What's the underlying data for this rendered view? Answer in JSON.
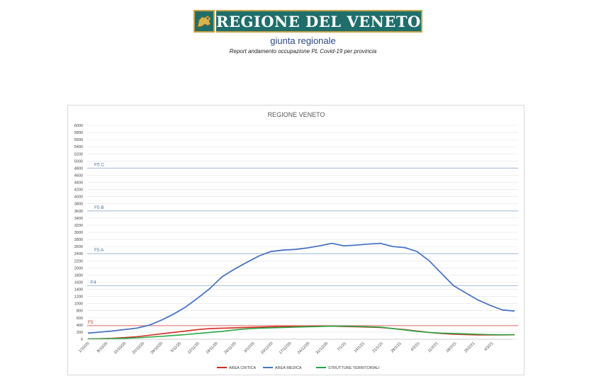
{
  "header": {
    "logo_text": "REGIONE DEL VENETO",
    "subtitle": "giunta regionale",
    "report_title": "Report andamento occupazione PL Covid-19 per provincia"
  },
  "colors": {
    "area_critica": "#d62a20",
    "area_medica": "#4a74c4",
    "strutture_territoriali": "#28a745",
    "threshold_blue": "#a9bfdc",
    "threshold_red": "#e56b6b",
    "grid": "#e4e4e4",
    "logo_bg": "#1f6e6b",
    "logo_border": "#c8a44a"
  },
  "chart_data": {
    "type": "line",
    "title": "REGIONE VENETO",
    "ylim": [
      0,
      6000
    ],
    "y_ticks": [
      0,
      200,
      400,
      600,
      800,
      1000,
      1200,
      1400,
      1600,
      1800,
      2000,
      2200,
      2400,
      2600,
      2800,
      3000,
      3200,
      3400,
      3600,
      3800,
      4000,
      4200,
      4400,
      4600,
      4800,
      5000,
      5200,
      5400,
      5600,
      5800,
      6000
    ],
    "x_tick_labels": [
      "1/10/20",
      "8/10/20",
      "15/10/20",
      "22/10/20",
      "29/10/20",
      "5/11/20",
      "12/11/20",
      "19/11/20",
      "26/11/20",
      "3/12/20",
      "10/12/20",
      "17/12/20",
      "24/12/20",
      "31/12/20",
      "7/1/21",
      "14/1/21",
      "21/1/21",
      "28/1/21",
      "4/2/21",
      "11/2/21",
      "18/2/21",
      "25/2/21",
      "4/3/21"
    ],
    "grid": true,
    "legend_position": "bottom",
    "thresholds": [
      {
        "label": "F5 C",
        "value": 4800,
        "color": "#a9bfdc"
      },
      {
        "label": "F5 B",
        "value": 3600,
        "color": "#a9bfdc"
      },
      {
        "label": "F5 A",
        "value": 2400,
        "color": "#a9bfdc"
      },
      {
        "label": "F4",
        "value": 1500,
        "color": "#a9bfdc"
      },
      {
        "label": "F5",
        "value": 380,
        "color": "#e56b6b"
      }
    ],
    "series": [
      {
        "name": "AREA CRITICA",
        "color": "#d62a20",
        "values": [
          10,
          15,
          25,
          45,
          70,
          110,
          150,
          190,
          230,
          270,
          300,
          310,
          320,
          330,
          340,
          350,
          360,
          360,
          360,
          370,
          365,
          355,
          350,
          340,
          330,
          300,
          270,
          230,
          190,
          160,
          140,
          130,
          120,
          120,
          120,
          125
        ]
      },
      {
        "name": "AREA MEDICA",
        "color": "#4a74c4",
        "values": [
          170,
          200,
          230,
          270,
          310,
          390,
          530,
          700,
          900,
          1150,
          1420,
          1750,
          1960,
          2150,
          2330,
          2460,
          2500,
          2520,
          2560,
          2620,
          2690,
          2620,
          2640,
          2670,
          2690,
          2600,
          2570,
          2460,
          2200,
          1850,
          1500,
          1300,
          1100,
          950,
          820,
          790
        ]
      },
      {
        "name": "STRUTTURE TERRITORIALI",
        "color": "#28a745",
        "values": [
          10,
          12,
          18,
          25,
          40,
          60,
          80,
          105,
          130,
          160,
          190,
          220,
          260,
          290,
          310,
          320,
          330,
          340,
          350,
          355,
          365,
          365,
          360,
          350,
          340,
          300,
          260,
          220,
          190,
          170,
          160,
          150,
          140,
          130,
          125,
          130
        ]
      }
    ]
  }
}
